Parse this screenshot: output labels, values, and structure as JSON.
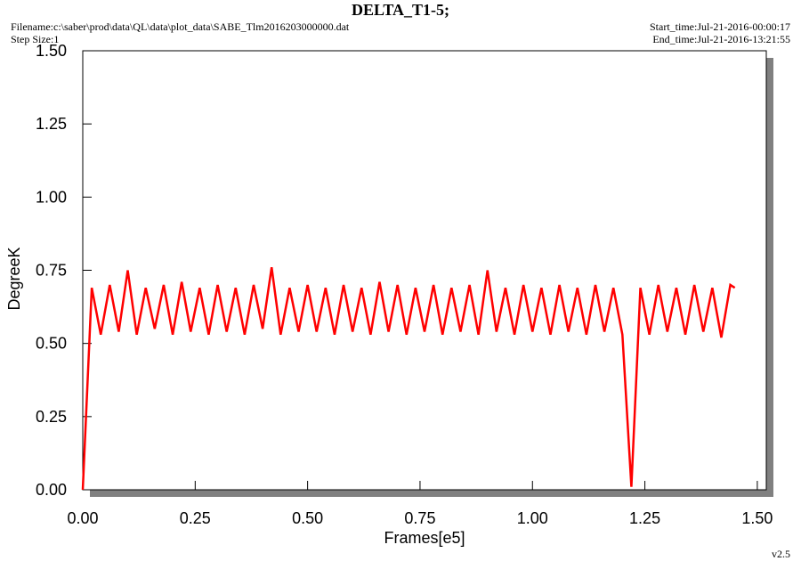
{
  "chart_data": {
    "type": "line",
    "title": "DELTA_T1-5;",
    "filename": "Filename:c:\\saber\\prod\\data\\QL\\data\\plot_data\\SABE_Tlm2016203000000.dat",
    "step_size": "Step Size:1",
    "start_time": "Start_time:Jul-21-2016-00:00:17",
    "end_time": "End_time:Jul-21-2016-13:21:55",
    "version": "v2.5",
    "x_label": "Frames[e5]",
    "y_label": "DegreeK",
    "x": [
      0,
      0.02,
      0.04,
      0.06,
      0.08,
      0.1,
      0.12,
      0.14,
      0.16,
      0.18,
      0.2,
      0.22,
      0.24,
      0.26,
      0.28,
      0.3,
      0.32,
      0.34,
      0.36,
      0.38,
      0.4,
      0.42,
      0.44,
      0.46,
      0.48,
      0.5,
      0.52,
      0.54,
      0.56,
      0.58,
      0.6,
      0.62,
      0.64,
      0.66,
      0.68,
      0.7,
      0.72,
      0.74,
      0.76,
      0.78,
      0.8,
      0.82,
      0.84,
      0.86,
      0.88,
      0.9,
      0.92,
      0.94,
      0.96,
      0.98,
      1.0,
      1.02,
      1.04,
      1.06,
      1.08,
      1.1,
      1.12,
      1.14,
      1.16,
      1.18,
      1.2,
      1.22,
      1.24,
      1.26,
      1.28,
      1.3,
      1.32,
      1.34,
      1.36,
      1.38,
      1.4,
      1.42,
      1.44,
      1.45
    ],
    "series": [
      {
        "name": "DELTA_T1-5",
        "color": "#ff0000",
        "values": [
          0.0,
          0.69,
          0.53,
          0.7,
          0.54,
          0.75,
          0.53,
          0.69,
          0.55,
          0.7,
          0.53,
          0.71,
          0.54,
          0.69,
          0.53,
          0.7,
          0.54,
          0.69,
          0.53,
          0.7,
          0.55,
          0.76,
          0.53,
          0.69,
          0.54,
          0.7,
          0.54,
          0.69,
          0.53,
          0.7,
          0.54,
          0.69,
          0.53,
          0.71,
          0.54,
          0.7,
          0.53,
          0.69,
          0.54,
          0.7,
          0.53,
          0.69,
          0.54,
          0.7,
          0.53,
          0.75,
          0.54,
          0.69,
          0.53,
          0.7,
          0.54,
          0.69,
          0.53,
          0.7,
          0.54,
          0.69,
          0.53,
          0.7,
          0.54,
          0.69,
          0.53,
          0.01,
          0.69,
          0.53,
          0.7,
          0.54,
          0.69,
          0.53,
          0.7,
          0.54,
          0.69,
          0.52,
          0.7,
          0.69
        ]
      }
    ],
    "xlim": [
      0,
      1.52
    ],
    "ylim": [
      0,
      1.5
    ],
    "xticks": [
      {
        "value": 0,
        "label": "0.00"
      },
      {
        "value": 0.25,
        "label": "0.25"
      },
      {
        "value": 0.5,
        "label": "0.50"
      },
      {
        "value": 0.75,
        "label": "0.75"
      },
      {
        "value": 1,
        "label": "1.00"
      },
      {
        "value": 1.25,
        "label": "1.25"
      },
      {
        "value": 1.5,
        "label": "1.50"
      }
    ],
    "yticks": [
      {
        "value": 0,
        "label": "0.00"
      },
      {
        "value": 0.25,
        "label": "0.25"
      },
      {
        "value": 0.5,
        "label": "0.50"
      },
      {
        "value": 0.75,
        "label": "0.75"
      },
      {
        "value": 1,
        "label": "1.00"
      },
      {
        "value": 1.25,
        "label": "1.25"
      },
      {
        "value": 1.5,
        "label": "1.50"
      }
    ]
  }
}
